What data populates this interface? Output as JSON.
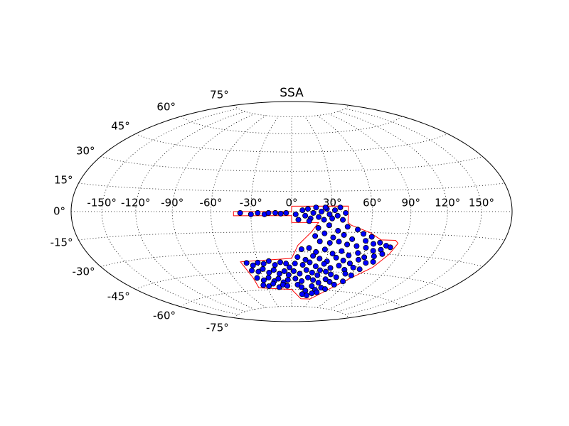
{
  "chart_data": {
    "type": "scatter",
    "projection": "hammer",
    "title": "SSA",
    "xlim": [
      -180,
      180
    ],
    "ylim": [
      -90,
      90
    ],
    "grid": true,
    "xticks": [
      {
        "value": -150,
        "label": "-150°"
      },
      {
        "value": -120,
        "label": "-120°"
      },
      {
        "value": -90,
        "label": "-90°"
      },
      {
        "value": -60,
        "label": "-60°"
      },
      {
        "value": -30,
        "label": "-30°"
      },
      {
        "value": 0,
        "label": "0°"
      },
      {
        "value": 30,
        "label": "30°"
      },
      {
        "value": 60,
        "label": "60°"
      },
      {
        "value": 90,
        "label": "90°"
      },
      {
        "value": 120,
        "label": "120°"
      },
      {
        "value": 150,
        "label": "150°"
      }
    ],
    "yticks": [
      {
        "value": -75,
        "label": "-75°"
      },
      {
        "value": -60,
        "label": "-60°"
      },
      {
        "value": -45,
        "label": "-45°"
      },
      {
        "value": -30,
        "label": "-30°"
      },
      {
        "value": -15,
        "label": "-15°"
      },
      {
        "value": 0,
        "label": "0°"
      },
      {
        "value": 15,
        "label": "15°"
      },
      {
        "value": 30,
        "label": "30°"
      },
      {
        "value": 45,
        "label": "45°"
      },
      {
        "value": 60,
        "label": "60°"
      },
      {
        "value": 75,
        "label": "75°"
      }
    ],
    "footprint": {
      "color": "#ff0000",
      "x": [
        -43,
        -43,
        0,
        0,
        20,
        15,
        5,
        0,
        -45,
        -40,
        -40,
        0,
        15,
        30,
        45,
        60,
        75,
        82,
        85,
        82,
        70,
        60,
        45,
        42,
        42,
        0,
        0,
        -43
      ],
      "y": [
        0,
        -3,
        -3,
        -8,
        -8,
        -15,
        -25,
        -35,
        -37,
        -50,
        -58,
        -60,
        -68,
        -68,
        -60,
        -50,
        -40,
        -30,
        -22,
        -20,
        -20,
        -15,
        -10,
        -8,
        4,
        4,
        0,
        0
      ]
    },
    "points": {
      "color": "#0000ff",
      "edgecolor": "#000000",
      "x": [
        -38,
        -30,
        -25,
        -20,
        -17,
        -12,
        -8,
        -4,
        3,
        5,
        8,
        10,
        12,
        14,
        16,
        18,
        20,
        22,
        24,
        26,
        28,
        30,
        32,
        34,
        36,
        38,
        40,
        25,
        13,
        20,
        28,
        35,
        42,
        50,
        55,
        62,
        70,
        76,
        80,
        18,
        25,
        32,
        40,
        47,
        58,
        65,
        73,
        22,
        30,
        37,
        44,
        52,
        60,
        67,
        8,
        14,
        20,
        27,
        34,
        41,
        48,
        55,
        62,
        70,
        76,
        5,
        12,
        18,
        24,
        31,
        38,
        45,
        52,
        58,
        66,
        72,
        3,
        10,
        16,
        22,
        29,
        36,
        43,
        50,
        57,
        64,
        2,
        8,
        14,
        20,
        26,
        33,
        39,
        46,
        53,
        60,
        4,
        11,
        17,
        23,
        30,
        36,
        42,
        49,
        56,
        7,
        27,
        12,
        18,
        24,
        30,
        36,
        42,
        15,
        22,
        28,
        34,
        -40,
        -35,
        -30,
        -25,
        -20,
        -15,
        -10,
        -5,
        -2,
        -38,
        -32,
        -27,
        -22,
        -17,
        -12,
        -7,
        -3,
        -36,
        -30,
        -24,
        -19,
        -14,
        -9,
        -4,
        -33,
        -27,
        -21,
        -15,
        -10,
        -5
      ],
      "y": [
        -1,
        -2,
        -1,
        -2,
        -1,
        -1,
        -1.5,
        -1,
        -2,
        -6,
        1,
        -3,
        2,
        -5,
        -1,
        3,
        -4,
        0,
        -6,
        2,
        -2,
        -5,
        1,
        -3,
        3,
        -6,
        -1,
        3,
        -7,
        -12,
        -10,
        -14,
        -11,
        -13,
        -16,
        -18,
        -22,
        -24,
        -25,
        -18,
        -16,
        -19,
        -17,
        -20,
        -21,
        -23,
        -27,
        -22,
        -23,
        -22,
        -24,
        -25,
        -26,
        -28,
        -28,
        -27,
        -30,
        -28,
        -31,
        -29,
        -32,
        -30,
        -33,
        -32,
        -30,
        -34,
        -36,
        -33,
        -35,
        -37,
        -34,
        -36,
        -38,
        -35,
        -37,
        -36,
        -39,
        -40,
        -38,
        -41,
        -39,
        -42,
        -40,
        -43,
        -41,
        -42,
        -45,
        -47,
        -44,
        -46,
        -48,
        -45,
        -47,
        -49,
        -46,
        -47,
        -51,
        -53,
        -50,
        -52,
        -54,
        -51,
        -53,
        -55,
        -52,
        -56,
        -44,
        -58,
        -61,
        -57,
        -60,
        -58,
        -59,
        -64,
        -65,
        -63,
        -62,
        -38,
        -40,
        -38,
        -39,
        -37,
        -40,
        -38,
        -39,
        -42,
        -44,
        -45,
        -43,
        -46,
        -44,
        -47,
        -45,
        -48,
        -50,
        -52,
        -50,
        -53,
        -51,
        -54,
        -52,
        -56,
        -57,
        -55,
        -58,
        -56,
        -57
      ]
    }
  }
}
